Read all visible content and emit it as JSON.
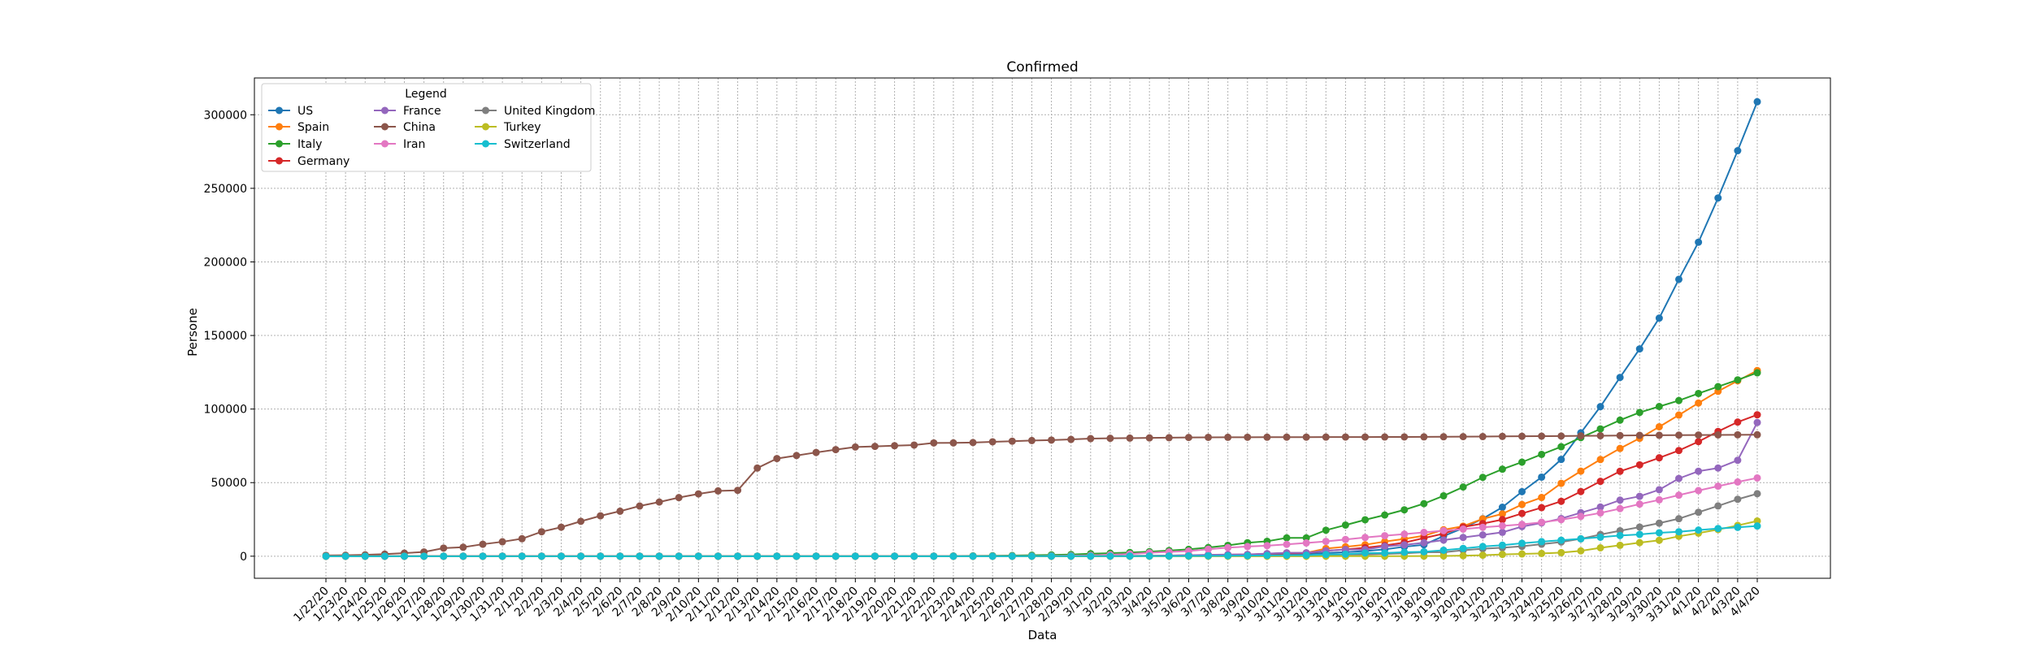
{
  "chart_data": {
    "type": "line",
    "title": "Confirmed",
    "xlabel": "Data",
    "ylabel": "Persone",
    "ylim": [
      -15000,
      325000
    ],
    "yticks": [
      0,
      50000,
      100000,
      150000,
      200000,
      250000,
      300000
    ],
    "grid": true,
    "legend": {
      "title": "Legend",
      "placement": "top-left",
      "columns": 3
    },
    "categories": [
      "1/22/20",
      "1/23/20",
      "1/24/20",
      "1/25/20",
      "1/26/20",
      "1/27/20",
      "1/28/20",
      "1/29/20",
      "1/30/20",
      "1/31/20",
      "2/1/20",
      "2/2/20",
      "2/3/20",
      "2/4/20",
      "2/5/20",
      "2/6/20",
      "2/7/20",
      "2/8/20",
      "2/9/20",
      "2/10/20",
      "2/11/20",
      "2/12/20",
      "2/13/20",
      "2/14/20",
      "2/15/20",
      "2/16/20",
      "2/17/20",
      "2/18/20",
      "2/19/20",
      "2/20/20",
      "2/21/20",
      "2/22/20",
      "2/23/20",
      "2/24/20",
      "2/25/20",
      "2/26/20",
      "2/27/20",
      "2/28/20",
      "2/29/20",
      "3/1/20",
      "3/2/20",
      "3/3/20",
      "3/4/20",
      "3/5/20",
      "3/6/20",
      "3/7/20",
      "3/8/20",
      "3/9/20",
      "3/10/20",
      "3/11/20",
      "3/12/20",
      "3/13/20",
      "3/14/20",
      "3/15/20",
      "3/16/20",
      "3/17/20",
      "3/18/20",
      "3/19/20",
      "3/20/20",
      "3/21/20",
      "3/22/20",
      "3/23/20",
      "3/24/20",
      "3/25/20",
      "3/26/20",
      "3/27/20",
      "3/28/20",
      "3/29/20",
      "3/30/20",
      "3/31/20",
      "4/1/20",
      "4/2/20",
      "4/3/20",
      "4/4/20"
    ],
    "series": [
      {
        "name": "US",
        "color": "#1f77b4",
        "values": [
          1,
          1,
          2,
          2,
          5,
          5,
          5,
          5,
          5,
          6,
          8,
          8,
          11,
          11,
          11,
          12,
          12,
          12,
          12,
          12,
          13,
          13,
          15,
          15,
          15,
          15,
          15,
          15,
          15,
          15,
          15,
          15,
          15,
          51,
          51,
          57,
          58,
          60,
          68,
          74,
          98,
          118,
          149,
          217,
          262,
          402,
          518,
          583,
          959,
          1281,
          1663,
          2179,
          2727,
          3499,
          4632,
          6421,
          7786,
          13680,
          19101,
          25493,
          33276,
          43847,
          53740,
          65778,
          83836,
          101657,
          121478,
          140886,
          161807,
          188172,
          213372,
          243453,
          275586,
          308850
        ]
      },
      {
        "name": "Spain",
        "color": "#ff7f0e",
        "values": [
          0,
          0,
          0,
          0,
          0,
          0,
          0,
          0,
          0,
          0,
          1,
          1,
          1,
          1,
          1,
          1,
          1,
          1,
          2,
          2,
          2,
          2,
          2,
          2,
          2,
          2,
          2,
          2,
          2,
          2,
          2,
          2,
          2,
          2,
          6,
          13,
          15,
          32,
          45,
          84,
          120,
          165,
          222,
          259,
          400,
          500,
          673,
          1073,
          1695,
          2277,
          2277,
          5232,
          6391,
          7798,
          9942,
          11748,
          13910,
          17963,
          20410,
          25374,
          28768,
          35136,
          39885,
          49515,
          57786,
          65719,
          73235,
          80110,
          87956,
          95923,
          104118,
          112065,
          119199,
          126168
        ]
      },
      {
        "name": "Italy",
        "color": "#2ca02c",
        "values": [
          0,
          0,
          0,
          0,
          0,
          0,
          0,
          0,
          0,
          2,
          2,
          2,
          2,
          2,
          2,
          2,
          3,
          3,
          3,
          3,
          3,
          3,
          3,
          3,
          3,
          3,
          3,
          3,
          3,
          3,
          20,
          62,
          155,
          229,
          322,
          453,
          655,
          888,
          1128,
          1694,
          2036,
          2502,
          3089,
          3858,
          4636,
          5883,
          7375,
          9172,
          10149,
          12462,
          12462,
          17660,
          21157,
          24747,
          27980,
          31506,
          35713,
          41035,
          47021,
          53578,
          59138,
          63927,
          69176,
          74386,
          80589,
          86498,
          92472,
          97689,
          101739,
          105792,
          110574,
          115242,
          119827,
          124632
        ]
      },
      {
        "name": "Germany",
        "color": "#d62728",
        "values": [
          0,
          0,
          0,
          0,
          0,
          1,
          4,
          4,
          4,
          5,
          8,
          10,
          12,
          12,
          12,
          12,
          13,
          13,
          14,
          14,
          16,
          16,
          16,
          16,
          16,
          16,
          16,
          16,
          16,
          16,
          16,
          16,
          16,
          16,
          17,
          27,
          46,
          48,
          79,
          130,
          159,
          196,
          262,
          482,
          670,
          799,
          1040,
          1176,
          1457,
          1908,
          2078,
          3675,
          4585,
          5795,
          7272,
          9257,
          12327,
          15320,
          19848,
          22213,
          24873,
          29056,
          32986,
          37323,
          43938,
          50871,
          57695,
          62095,
          66885,
          71808,
          77872,
          84794,
          91159,
          96092
        ]
      },
      {
        "name": "France",
        "color": "#9467bd",
        "values": [
          0,
          0,
          2,
          3,
          3,
          3,
          4,
          5,
          5,
          5,
          6,
          6,
          6,
          6,
          6,
          6,
          6,
          11,
          11,
          11,
          11,
          11,
          11,
          11,
          12,
          12,
          12,
          12,
          12,
          12,
          12,
          12,
          12,
          12,
          14,
          18,
          38,
          57,
          100,
          130,
          191,
          204,
          288,
          380,
          656,
          959,
          1136,
          1219,
          1794,
          2293,
          2293,
          3681,
          4496,
          4532,
          6683,
          7715,
          9124,
          10970,
          12758,
          14463,
          16243,
          20123,
          22622,
          25600,
          29551,
          33402,
          38105,
          40708,
          45170,
          52827,
          57749,
          59929,
          65202,
          90848
        ]
      },
      {
        "name": "China",
        "color": "#8c564b",
        "values": [
          548,
          643,
          920,
          1406,
          2075,
          2877,
          5509,
          6087,
          8141,
          9802,
          11891,
          16630,
          19716,
          23707,
          27440,
          30587,
          34110,
          36814,
          39829,
          42354,
          44386,
          44759,
          59895,
          66358,
          68413,
          70513,
          72434,
          74211,
          74619,
          75077,
          75550,
          77001,
          77022,
          77241,
          77754,
          78166,
          78600,
          78928,
          79356,
          79932,
          80136,
          80261,
          80386,
          80537,
          80690,
          80770,
          80823,
          80860,
          80887,
          80921,
          80932,
          80945,
          80977,
          81003,
          81033,
          81058,
          81102,
          81156,
          81250,
          81305,
          81435,
          81498,
          81591,
          81661,
          81782,
          81897,
          81999,
          82122,
          82198,
          82279,
          82361,
          82432,
          82511,
          82543
        ]
      },
      {
        "name": "Iran",
        "color": "#e377c2",
        "values": [
          0,
          0,
          0,
          0,
          0,
          0,
          0,
          0,
          0,
          0,
          0,
          0,
          0,
          0,
          0,
          0,
          0,
          0,
          0,
          0,
          0,
          0,
          0,
          0,
          0,
          0,
          0,
          0,
          0,
          2,
          5,
          18,
          28,
          43,
          61,
          95,
          139,
          245,
          388,
          593,
          978,
          1501,
          2336,
          2922,
          3513,
          4747,
          5823,
          6566,
          7161,
          8042,
          9000,
          10075,
          11364,
          12729,
          13938,
          14991,
          16169,
          17361,
          18407,
          19644,
          20610,
          21638,
          23049,
          24811,
          27017,
          29406,
          32332,
          35408,
          38309,
          41495,
          44605,
          47593,
          50468,
          53183
        ]
      },
      {
        "name": "United Kingdom",
        "color": "#7f7f7f",
        "values": [
          0,
          0,
          0,
          0,
          0,
          0,
          0,
          0,
          0,
          2,
          2,
          2,
          2,
          2,
          2,
          2,
          3,
          3,
          3,
          8,
          8,
          9,
          9,
          9,
          9,
          9,
          9,
          9,
          9,
          9,
          9,
          9,
          9,
          13,
          13,
          13,
          15,
          20,
          23,
          36,
          40,
          51,
          86,
          116,
          164,
          207,
          274,
          322,
          384,
          459,
          459,
          802,
          1144,
          1145,
          1551,
          1960,
          2642,
          2716,
          4014,
          5067,
          5745,
          6726,
          8164,
          9640,
          11812,
          14745,
          17312,
          19780,
          22453,
          25481,
          29865,
          34173,
          38689,
          42477
        ]
      },
      {
        "name": "Turkey",
        "color": "#bcbd22",
        "values": [
          0,
          0,
          0,
          0,
          0,
          0,
          0,
          0,
          0,
          0,
          0,
          0,
          0,
          0,
          0,
          0,
          0,
          0,
          0,
          0,
          0,
          0,
          0,
          0,
          0,
          0,
          0,
          0,
          0,
          0,
          0,
          0,
          0,
          0,
          0,
          0,
          0,
          0,
          0,
          0,
          0,
          0,
          0,
          0,
          0,
          0,
          0,
          0,
          0,
          1,
          1,
          5,
          5,
          6,
          18,
          47,
          98,
          192,
          359,
          670,
          1236,
          1529,
          1872,
          2433,
          3629,
          5698,
          7402,
          9217,
          10827,
          13531,
          15679,
          18135,
          20921,
          23934
        ]
      },
      {
        "name": "Switzerland",
        "color": "#17becf",
        "values": [
          0,
          0,
          0,
          0,
          0,
          0,
          0,
          0,
          0,
          0,
          0,
          0,
          0,
          0,
          0,
          0,
          0,
          0,
          0,
          0,
          0,
          0,
          0,
          0,
          0,
          0,
          0,
          0,
          0,
          0,
          0,
          0,
          0,
          0,
          1,
          1,
          8,
          8,
          18,
          27,
          42,
          56,
          90,
          114,
          214,
          268,
          337,
          374,
          491,
          652,
          652,
          1139,
          1359,
          2200,
          2200,
          2700,
          3028,
          4075,
          5294,
          6575,
          7474,
          8795,
          9877,
          10897,
          11811,
          12928,
          14076,
          14829,
          15922,
          16605,
          17768,
          18827,
          19606,
          20505
        ]
      }
    ]
  }
}
